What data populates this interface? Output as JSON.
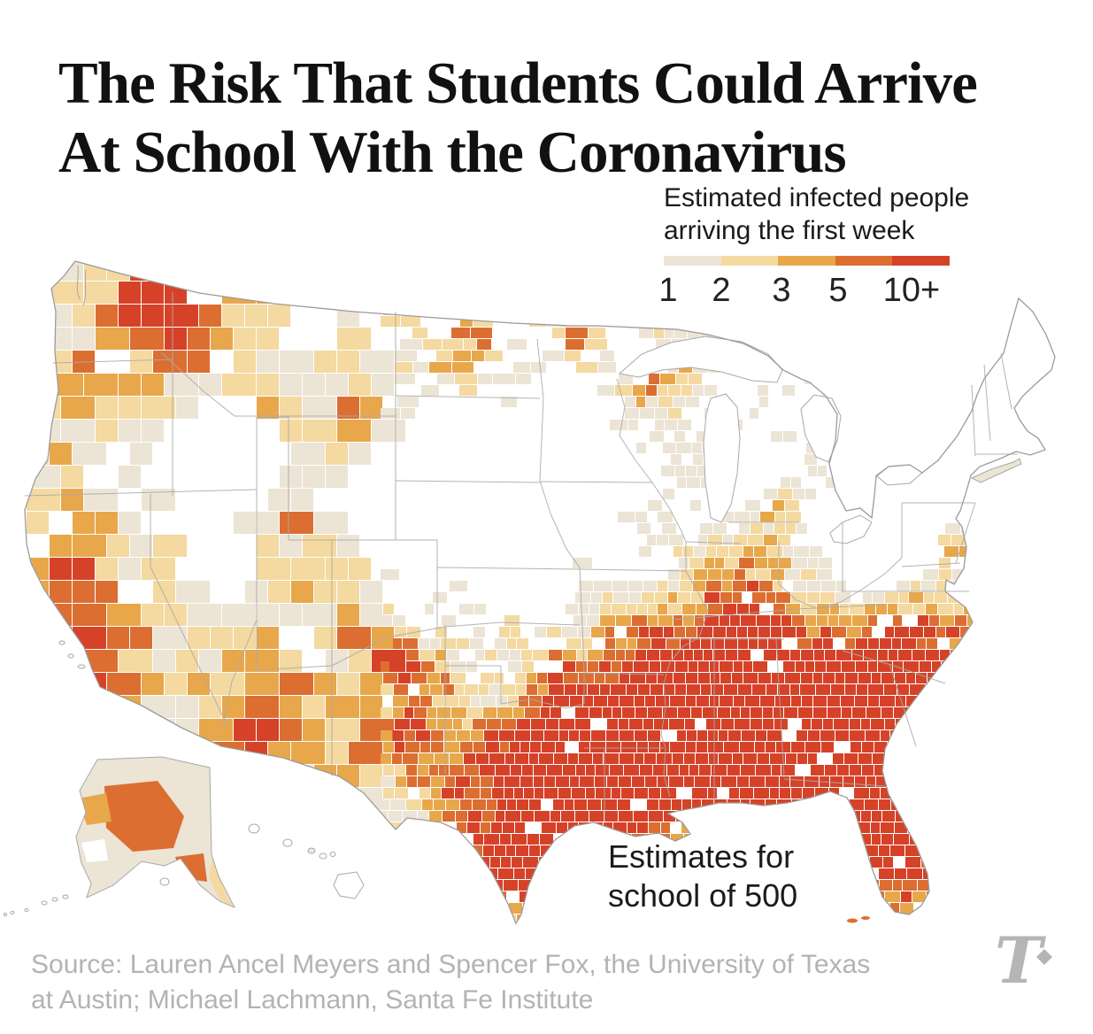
{
  "title": {
    "line1": "The Risk That Students Could Arrive",
    "line2": "At School With the Coronavirus"
  },
  "legend": {
    "title_line1": "Estimated infected people",
    "title_line2": "arriving the first week",
    "labels": [
      "1",
      "2",
      "3",
      "5",
      "10+"
    ],
    "colors": [
      "#ece4d5",
      "#f4d9a0",
      "#e8a74b",
      "#dc6e31",
      "#d64228"
    ]
  },
  "annotation": {
    "line1": "Estimates for",
    "line2": "school of 500"
  },
  "source": {
    "line1": "Source: Lauren Ancel Meyers and Spencer Fox, the University of Texas",
    "line2": "at Austin; Michael Lachmann, Santa Fe Institute"
  },
  "logo": {
    "glyph": "T"
  },
  "chart_data": {
    "type": "choropleth_map",
    "region": "United States counties (lower 48 plus Alaska and Hawaii)",
    "title": "The Risk That Students Could Arrive At School With the Coronavirus",
    "legend_title": "Estimated infected people arriving the first week",
    "legend_thresholds": [
      "1",
      "2",
      "3",
      "5",
      "10+"
    ],
    "legend_colors": [
      "#ece4d5",
      "#f4d9a0",
      "#e8a74b",
      "#dc6e31",
      "#d64228"
    ],
    "note": "Estimates for school of 500",
    "pattern": [
      {
        "area": "Deep South (Mississippi, Alabama, Georgia, South Carolina, Louisiana, Tennessee)",
        "level": "5 to 10+"
      },
      {
        "area": "Florida peninsula and panhandle",
        "level": "5 to 10+"
      },
      {
        "area": "South and central Texas",
        "level": "5 to 10+"
      },
      {
        "area": "Arizona and southern/central California",
        "level": "3 to 10"
      },
      {
        "area": "Scattered hotspots: eastern Washington, northern Idaho, central Montana, eastern North Dakota, northwest Nevada",
        "level": "5 to 10+"
      },
      {
        "area": "Great Plains (Dakotas, Nebraska, Kansas, Oklahoma)",
        "level": "under 1 to 2, many no-data counties"
      },
      {
        "area": "Upper Midwest and Ohio Valley",
        "level": "1 to 3 scattered"
      },
      {
        "area": "Northeast and upstate New York / New England",
        "level": "under 1 to 1"
      },
      {
        "area": "Appalachia (West Virginia, Kentucky, western Virginia)",
        "level": "under 1 to 2"
      }
    ]
  }
}
